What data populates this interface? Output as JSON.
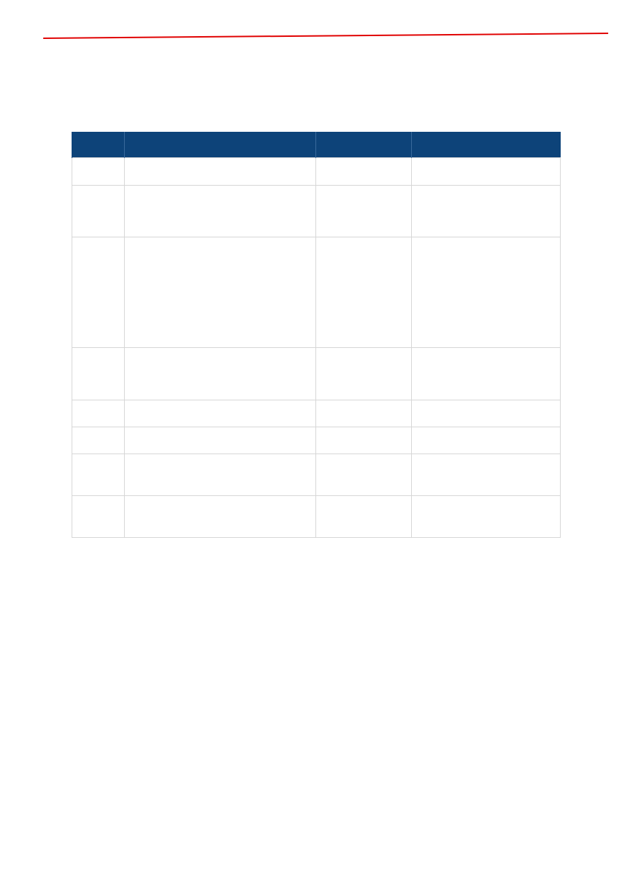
{
  "colors": {
    "accent_rule": "#e00000",
    "table_header": "#0d4379",
    "grid_line": "#d6d6d6"
  },
  "table": {
    "headers": [
      "",
      "",
      "",
      ""
    ],
    "rows": [
      [
        "",
        "",
        "",
        ""
      ],
      [
        "",
        "",
        "",
        ""
      ],
      [
        "",
        "",
        "",
        ""
      ],
      [
        "",
        "",
        "",
        ""
      ],
      [
        "",
        "",
        "",
        ""
      ],
      [
        "",
        "",
        "",
        ""
      ],
      [
        "",
        "",
        "",
        ""
      ],
      [
        "",
        "",
        "",
        ""
      ]
    ]
  }
}
